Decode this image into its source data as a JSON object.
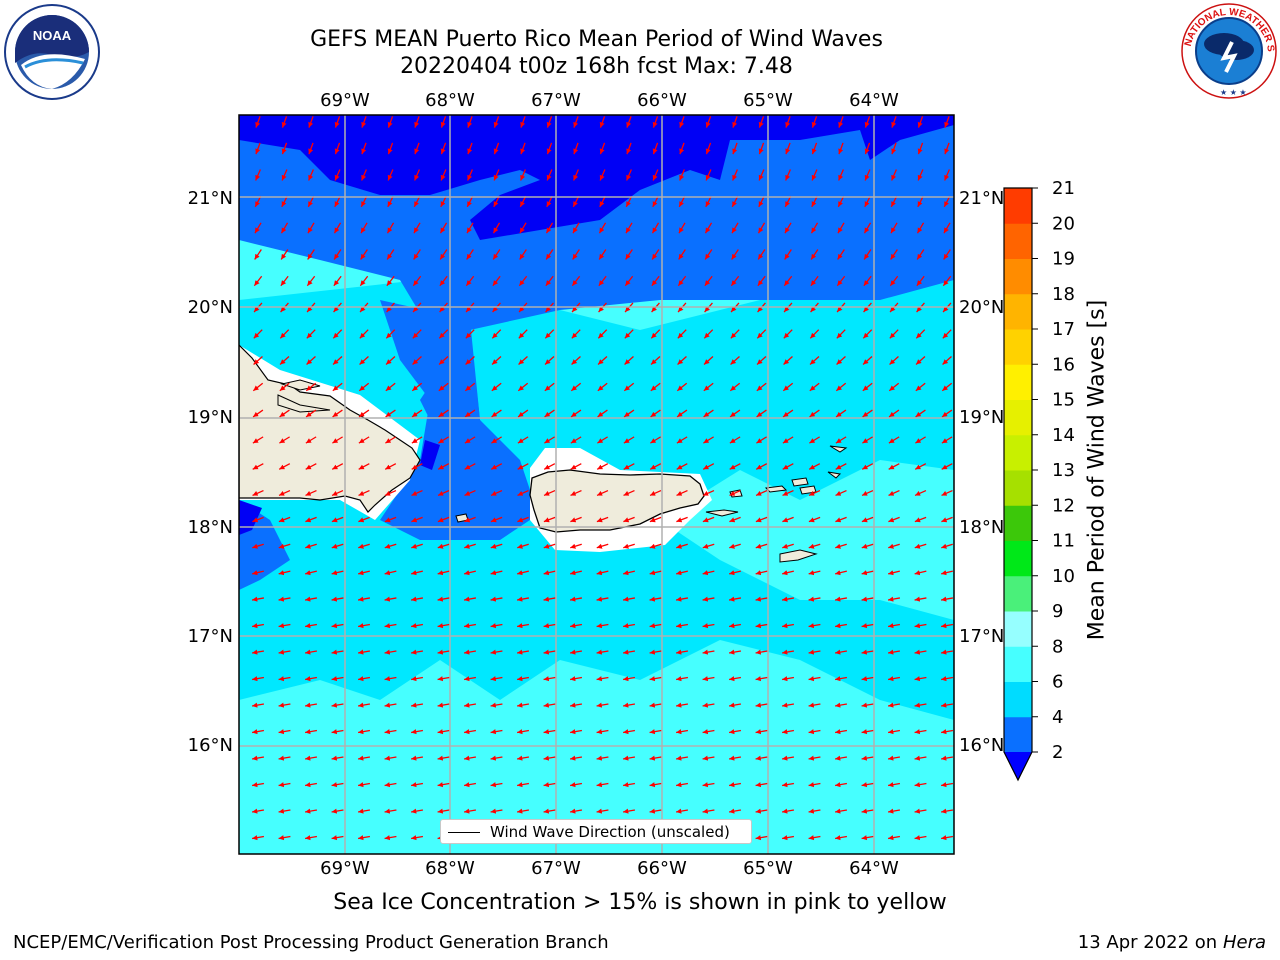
{
  "header": {
    "title_line1": "GEFS MEAN Puerto Rico Mean Period of Wind Waves",
    "title_line2": "20220404 t00z 168h fcst   Max: 7.48"
  },
  "logos": {
    "left": "NOAA",
    "left_ring": "NATIONAL OCEANIC AND ATMOSPHERIC ADMINISTRATION · U.S. DEPARTMENT OF COMMERCE",
    "right_ring": "NATIONAL WEATHER SERVICE"
  },
  "map": {
    "lon_labels": [
      "69°W",
      "68°W",
      "67°W",
      "66°W",
      "65°W",
      "64°W"
    ],
    "lat_labels": [
      "21°N",
      "20°N",
      "19°N",
      "18°N",
      "17°N",
      "16°N"
    ],
    "legend_label": "Wind Wave Direction (unscaled)",
    "arrow_color": "#ff0000",
    "land_color": "#efecdc",
    "grid": true
  },
  "colorbar": {
    "label": "Mean Period of Wind Waves [s]",
    "ticks": [
      "2",
      "4",
      "6",
      "8",
      "9",
      "10",
      "11",
      "12",
      "13",
      "14",
      "15",
      "16",
      "17",
      "18",
      "19",
      "20",
      "21"
    ],
    "colors": [
      "#0a70ff",
      "#00dcff",
      "#46ffff",
      "#96ffff",
      "#4af07a",
      "#00e818",
      "#3cc80a",
      "#a6e000",
      "#c8f000",
      "#e6f000",
      "#fff000",
      "#ffd200",
      "#ffb400",
      "#ff8c00",
      "#ff6400",
      "#ff3c00",
      "#ff0000"
    ],
    "under_color": "#0000ff"
  },
  "notes": {
    "ice": "Sea Ice Concentration > 15% is shown in pink to yellow",
    "credit": "NCEP/EMC/Verification Post Processing Product Generation Branch",
    "date": "13 Apr 2022 on ",
    "machine": "Hera"
  }
}
